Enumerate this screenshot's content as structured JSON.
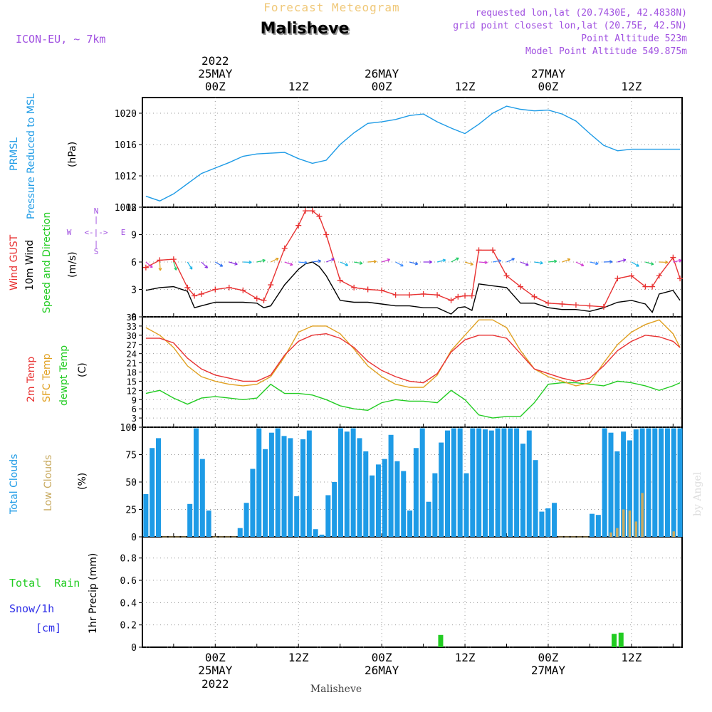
{
  "header": {
    "product": "Forecast Meteogram",
    "location": "Malisheve",
    "model": "ICON-EU, ~ 7km",
    "requested": "requested lon,lat (20.7430E, 42.4838N)",
    "gridpoint": "grid point closest lon,lat (20.75E, 42.5N)",
    "point_alt": "Point Altitude 523m",
    "model_alt": "Model Point Altitude 549.875m",
    "footer_location": "Malisheve",
    "credit": "by Angel"
  },
  "time_axis": {
    "top": [
      {
        "line1": "2022",
        "line2": "25MAY",
        "line3": "00Z"
      },
      {
        "line1": "",
        "line2": "",
        "line3": "12Z"
      },
      {
        "line1": "",
        "line2": "26MAY",
        "line3": "00Z"
      },
      {
        "line1": "",
        "line2": "",
        "line3": "12Z"
      },
      {
        "line1": "",
        "line2": "27MAY",
        "line3": "00Z"
      },
      {
        "line1": "",
        "line2": "",
        "line3": "12Z"
      }
    ],
    "bottom": [
      {
        "line1": "00Z",
        "line2": "25MAY",
        "line3": "2022"
      },
      {
        "line1": "12Z",
        "line2": "",
        "line3": ""
      },
      {
        "line1": "00Z",
        "line2": "26MAY",
        "line3": ""
      },
      {
        "line1": "12Z",
        "line2": "",
        "line3": ""
      },
      {
        "line1": "00Z",
        "line2": "27MAY",
        "line3": ""
      },
      {
        "line1": "12Z",
        "line2": "",
        "line3": ""
      }
    ]
  },
  "panel_labels": {
    "pressure": {
      "a": "PRMSL",
      "b": "Pressure Reduced to MSL",
      "unit": "(hPa)"
    },
    "wind": {
      "gust": "Wind GUST",
      "wind10": "10m Wind",
      "dir": "Speed and Direction",
      "unit": "(m/s)",
      "n": "N",
      "s": "S",
      "w": "W",
      "e": "E",
      "compass_mid": "<-|->",
      "compass_v": "|"
    },
    "temp": {
      "t2m": "2m Temp",
      "sfc": "SFC Temp",
      "dew": "dewpt Temp",
      "unit": "(C)"
    },
    "clouds": {
      "total": "Total Clouds",
      "low": "Low Clouds",
      "unit": "(%)"
    },
    "precip": {
      "rain": "Total  Rain",
      "snow": "Snow/1h",
      "snow_unit": "[cm]",
      "unit": "1hr Precip (mm)"
    }
  },
  "colors": {
    "pressure": "#1e9be6",
    "gust": "#e83232",
    "wind": "#000000",
    "t2m": "#e83232",
    "sfc": "#e0a020",
    "dew": "#22cc22",
    "total_cloud": "#1e9be6",
    "low_cloud": "#c8aa60",
    "rain": "#22cc22",
    "snow": "#3030e8",
    "purple": "#a050e0",
    "title_orange": "#f0c878"
  },
  "chart_data": [
    {
      "type": "line",
      "title": "PRMSL Pressure Reduced to MSL",
      "ylabel": "hPa",
      "x_hours": [
        -10,
        -8,
        -6,
        -4,
        -2,
        0,
        2,
        4,
        6,
        8,
        10,
        12,
        14,
        16,
        18,
        20,
        22,
        24,
        26,
        28,
        30,
        32,
        34,
        36,
        38,
        40,
        42,
        44,
        46,
        48,
        50,
        52,
        54,
        56,
        58,
        60,
        62,
        64,
        66,
        67
      ],
      "ylim": [
        1008,
        1022
      ],
      "yticks": [
        1008,
        1012,
        1016,
        1020
      ],
      "series": [
        {
          "name": "PRMSL",
          "values": [
            1009.4,
            1008.8,
            1009.7,
            1011,
            1012.3,
            1013,
            1013.7,
            1014.5,
            1014.8,
            1014.9,
            1015,
            1014.2,
            1013.6,
            1014,
            1016,
            1017.5,
            1018.7,
            1018.9,
            1019.2,
            1019.7,
            1019.9,
            1018.9,
            1018.1,
            1017.4,
            1018.6,
            1020,
            1020.9,
            1020.5,
            1020.3,
            1020.4,
            1019.9,
            1019,
            1017.4,
            1015.9,
            1015.2,
            1015.4,
            1015.4,
            1015.4,
            1015.4,
            1015.4
          ]
        }
      ]
    },
    {
      "type": "line",
      "title": "Wind GUST / 10m Wind Speed and Direction",
      "ylabel": "m/s",
      "x_hours": [
        -10,
        -8,
        -6,
        -4,
        -3,
        -2,
        0,
        2,
        4,
        6,
        7,
        8,
        10,
        12,
        13,
        14,
        15,
        16,
        18,
        20,
        22,
        24,
        26,
        28,
        30,
        32,
        34,
        35,
        36,
        37,
        38,
        40,
        42,
        44,
        46,
        48,
        50,
        52,
        54,
        56,
        58,
        60,
        62,
        63,
        64,
        66,
        67
      ],
      "ylim": [
        0,
        12
      ],
      "yticks": [
        0,
        3,
        6,
        9,
        12
      ],
      "series": [
        {
          "name": "Wind GUST",
          "values": [
            5.4,
            6.2,
            6.3,
            3.2,
            2.3,
            2.5,
            3.0,
            3.2,
            2.9,
            2.0,
            1.8,
            3.5,
            7.5,
            10.0,
            11.6,
            11.6,
            11.0,
            9.0,
            4.0,
            3.2,
            3.0,
            2.9,
            2.4,
            2.4,
            2.5,
            2.4,
            1.8,
            2.2,
            2.3,
            2.3,
            7.3,
            7.3,
            4.5,
            3.3,
            2.2,
            1.5,
            1.4,
            1.3,
            1.2,
            1.1,
            4.2,
            4.5,
            3.3,
            3.3,
            4.5,
            6.5,
            4.2
          ]
        },
        {
          "name": "10m Wind",
          "values": [
            2.9,
            3.2,
            3.3,
            2.8,
            1.0,
            1.2,
            1.6,
            1.6,
            1.6,
            1.5,
            1.0,
            1.2,
            3.5,
            5.2,
            5.8,
            6.0,
            5.5,
            4.5,
            1.8,
            1.6,
            1.6,
            1.4,
            1.2,
            1.2,
            1.0,
            1.0,
            0.3,
            1.0,
            1.1,
            0.7,
            3.6,
            3.4,
            3.2,
            1.5,
            1.5,
            1.0,
            0.8,
            0.8,
            0.6,
            1.0,
            1.6,
            1.8,
            1.4,
            0.5,
            2.5,
            2.9,
            1.8
          ]
        }
      ]
    },
    {
      "type": "line",
      "title": "2m Temp / SFC Temp / dewpt Temp",
      "ylabel": "C",
      "x_hours": [
        -10,
        -8,
        -6,
        -4,
        -2,
        0,
        2,
        4,
        6,
        8,
        10,
        12,
        14,
        16,
        18,
        20,
        22,
        24,
        26,
        28,
        30,
        32,
        34,
        36,
        38,
        40,
        42,
        44,
        46,
        48,
        50,
        52,
        54,
        56,
        58,
        60,
        62,
        64,
        66,
        67
      ],
      "ylim": [
        0,
        36
      ],
      "yticks": [
        0,
        3,
        6,
        9,
        12,
        15,
        18,
        21,
        24,
        27,
        30,
        33,
        36
      ],
      "series": [
        {
          "name": "2m Temp",
          "values": [
            29,
            29,
            27.5,
            22.5,
            19,
            17,
            16,
            15,
            15,
            17,
            23.5,
            28,
            30,
            30.5,
            29,
            26,
            21.5,
            18.5,
            16.5,
            15,
            14.5,
            17.5,
            24.5,
            28.5,
            30,
            30,
            29,
            24,
            19,
            17.5,
            16,
            15,
            16,
            20,
            25,
            28,
            30,
            29.5,
            28,
            26
          ]
        },
        {
          "name": "SFC Temp",
          "values": [
            32.5,
            30,
            26,
            20,
            16.5,
            15,
            14,
            13.5,
            14,
            16.5,
            23,
            31,
            33,
            33,
            30.5,
            25.5,
            20,
            16.5,
            14,
            13,
            13,
            17,
            25,
            30,
            35,
            35,
            32.5,
            25,
            19,
            16.5,
            15,
            13.5,
            14.5,
            21,
            27,
            31,
            33.5,
            35,
            30.5,
            26
          ]
        },
        {
          "name": "dewpt Temp",
          "values": [
            11,
            12,
            9.5,
            7.5,
            9.5,
            10,
            9.5,
            9,
            9.5,
            14,
            11,
            11,
            10.5,
            9,
            7,
            6,
            5.5,
            8,
            9,
            8.5,
            8.5,
            8,
            12,
            9,
            4,
            3,
            3.5,
            3.5,
            8,
            14,
            14.5,
            14.5,
            14,
            13.5,
            15,
            14.5,
            13.5,
            12,
            13.5,
            14.5
          ]
        }
      ]
    },
    {
      "type": "bar",
      "title": "Total Clouds / Low Clouds",
      "ylabel": "%",
      "x_hours_start": -10,
      "ylim": [
        0,
        100
      ],
      "yticks": [
        0,
        25,
        50,
        75,
        100
      ],
      "series": [
        {
          "name": "Total Clouds",
          "values": [
            39,
            81,
            90,
            0,
            0,
            0,
            0,
            30,
            99,
            71,
            24,
            0,
            0,
            0,
            0,
            8,
            31,
            62,
            99,
            80,
            95,
            99,
            92,
            90,
            37,
            89,
            97,
            7,
            2,
            38,
            50,
            99,
            96,
            99,
            90,
            78,
            56,
            66,
            71,
            93,
            69,
            60,
            24,
            81,
            99,
            32,
            58,
            86,
            97,
            99,
            99,
            58,
            99,
            99,
            98,
            97,
            99,
            99,
            99,
            99,
            85,
            97,
            70,
            23,
            26,
            31,
            0,
            0,
            0,
            0,
            0,
            21,
            20,
            99,
            95,
            78,
            96,
            88,
            98,
            99,
            99,
            99,
            99,
            99,
            99,
            99
          ]
        },
        {
          "name": "Low Clouds",
          "values": [
            0,
            0,
            0,
            0,
            0,
            0,
            0,
            0,
            0,
            0,
            0,
            0,
            0,
            0,
            0,
            0,
            0,
            0,
            0,
            0,
            0,
            0,
            0,
            0,
            0,
            0,
            0,
            0,
            0,
            0,
            0,
            0,
            0,
            0,
            0,
            0,
            0,
            0,
            0,
            0,
            0,
            0,
            0,
            0,
            0,
            0,
            0,
            0,
            0,
            0,
            0,
            0,
            0,
            0,
            0,
            0,
            0,
            0,
            0,
            0,
            0,
            0,
            0,
            0,
            0,
            0,
            0,
            0,
            0,
            0,
            0,
            0,
            0,
            0,
            4,
            8,
            25,
            24,
            14,
            40,
            0,
            0,
            0,
            0,
            5,
            0
          ]
        }
      ]
    },
    {
      "type": "bar",
      "title": "1hr Precip (mm)",
      "ylabel": "1hr Precip (mm)",
      "ylim": [
        0,
        0.99
      ],
      "yticks": [
        0,
        0.2,
        0.4,
        0.6,
        0.8
      ],
      "series": [
        {
          "name": "Total Rain",
          "x_hours": [
            32.5,
            57.5,
            58.5
          ],
          "values": [
            0.11,
            0.12,
            0.13
          ]
        },
        {
          "name": "Snow/1h",
          "x_hours": [],
          "values": []
        }
      ]
    }
  ]
}
